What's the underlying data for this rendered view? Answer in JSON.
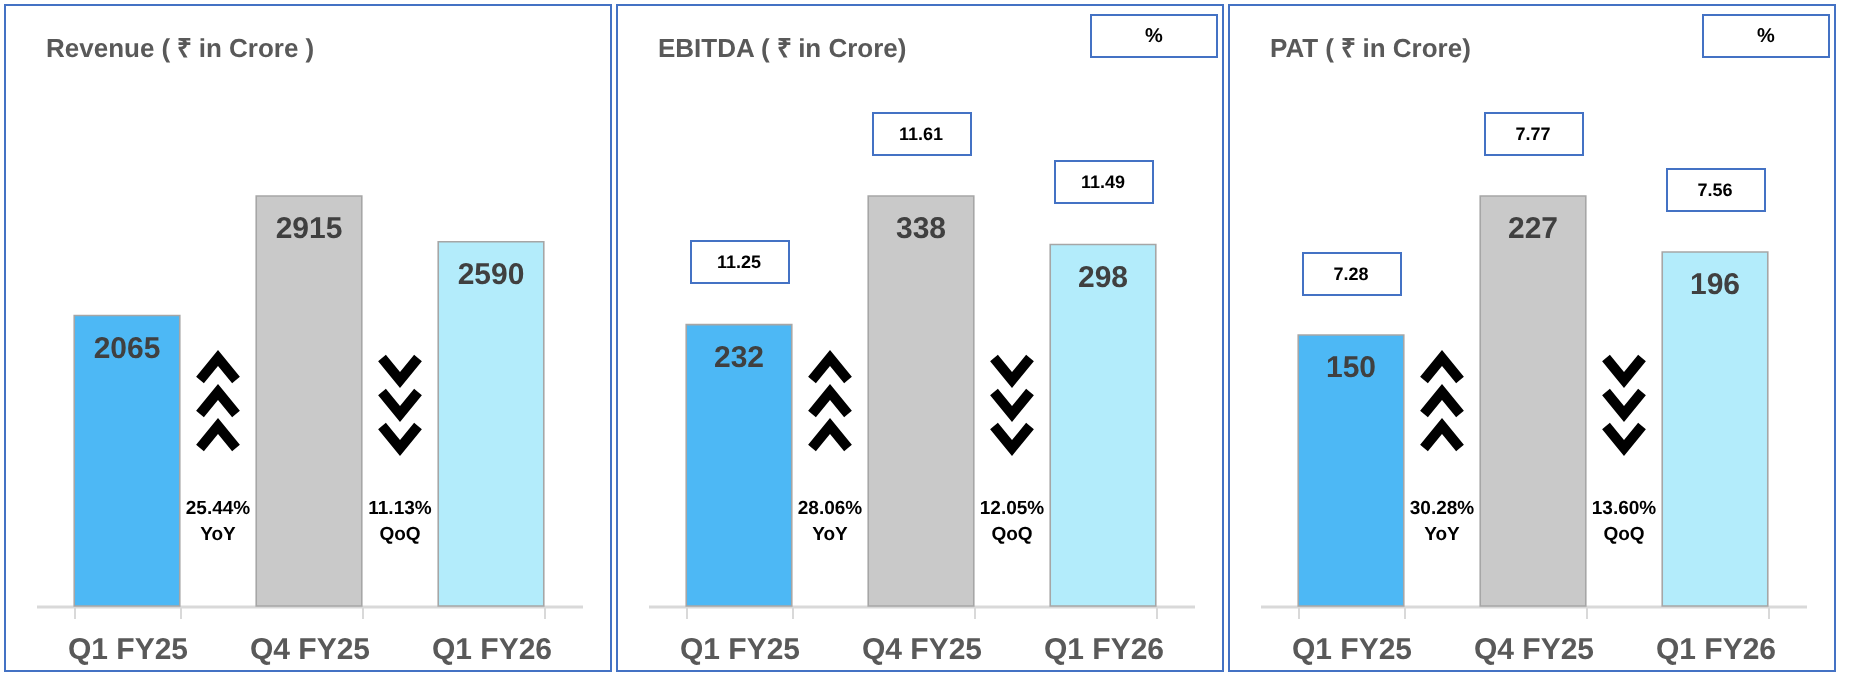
{
  "chart_data": [
    {
      "type": "bar",
      "title": "Revenue  ( ₹ in Crore )",
      "categories": [
        "Q1 FY25",
        "Q4 FY25",
        "Q1 FY26"
      ],
      "values": [
        2065,
        2915,
        2590
      ],
      "colors": [
        "#4db8f5",
        "#c9c9c9",
        "#b3ecfb"
      ],
      "data_labels": true,
      "annotations": [
        "25.44% YoY",
        "11.13% QoQ"
      ]
    },
    {
      "type": "bar",
      "title": "EBITDA ( ₹ in Crore)",
      "subtitle": "%",
      "categories": [
        "Q1 FY25",
        "Q4 FY25",
        "Q1 FY26"
      ],
      "values": [
        232,
        338,
        298
      ],
      "colors": [
        "#4db8f5",
        "#c9c9c9",
        "#b3ecfb"
      ],
      "data_labels": true,
      "annotations": [
        "11.25",
        "11.61",
        "11.49",
        "28.06% YoY",
        "12.05% QoQ"
      ]
    },
    {
      "type": "bar",
      "title": "PAT ( ₹ in Crore)",
      "subtitle": "%",
      "categories": [
        "Q1 FY25",
        "Q4 FY25",
        "Q1 FY26"
      ],
      "values": [
        150,
        227,
        196
      ],
      "colors": [
        "#4db8f5",
        "#c9c9c9",
        "#b3ecfb"
      ],
      "data_labels": true,
      "annotations": [
        "7.28",
        "7.77",
        "7.56",
        "30.28% YoY",
        "13.60% QoQ"
      ]
    }
  ]
}
